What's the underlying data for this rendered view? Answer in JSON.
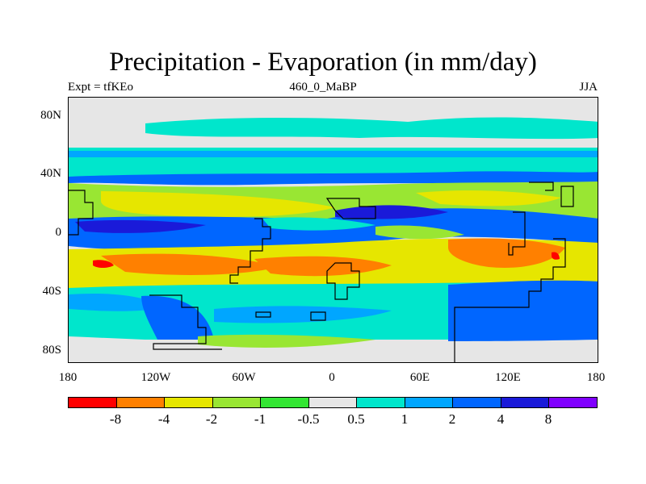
{
  "title": "Precipitation - Evaporation (in mm/day)",
  "subtitle_left": "Expt = tfKEo",
  "subtitle_center": "460_0_MaBP",
  "subtitle_right": "JJA",
  "axes": {
    "lat_ticks": [
      "80N",
      "40N",
      "0",
      "40S",
      "80S"
    ],
    "lon_ticks": [
      "180",
      "120W",
      "60W",
      "0",
      "60E",
      "120E",
      "180"
    ]
  },
  "colorbar": {
    "colors": [
      "#ff0000",
      "#ff8000",
      "#e6e600",
      "#99e633",
      "#33e633",
      "#e6e6e6",
      "#00e6cc",
      "#00a6ff",
      "#0066ff",
      "#1a1ad9",
      "#8000ff"
    ],
    "labels": [
      "-8",
      "-4",
      "-2",
      "-1",
      "-0.5",
      "0.5",
      "1",
      "2",
      "4",
      "8"
    ]
  },
  "map_colors": {
    "background": "#e6e6e6",
    "coastline": "#000000"
  }
}
